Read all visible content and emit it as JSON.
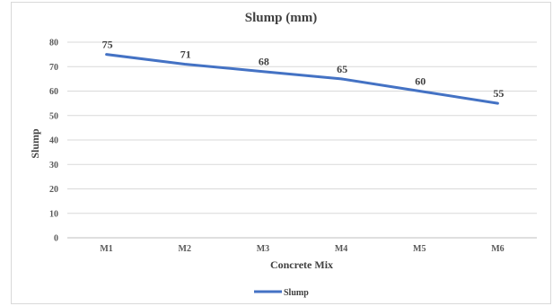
{
  "chart_data": {
    "type": "line",
    "title": "Slump (mm)",
    "xlabel": "Concrete Mix",
    "ylabel": "Slump",
    "categories": [
      "M1",
      "M2",
      "M3",
      "M4",
      "M5",
      "M6"
    ],
    "series": [
      {
        "name": "Slump",
        "values": [
          75,
          71,
          68,
          65,
          60,
          55
        ]
      }
    ],
    "ylim": [
      0,
      80
    ],
    "yticks": [
      0,
      10,
      20,
      30,
      40,
      50,
      60,
      70,
      80
    ],
    "grid": true,
    "legend": "bottom",
    "colors": {
      "series": "#4472c4",
      "grid": "#d9d9d9",
      "axis": "#bfbfbf"
    }
  }
}
